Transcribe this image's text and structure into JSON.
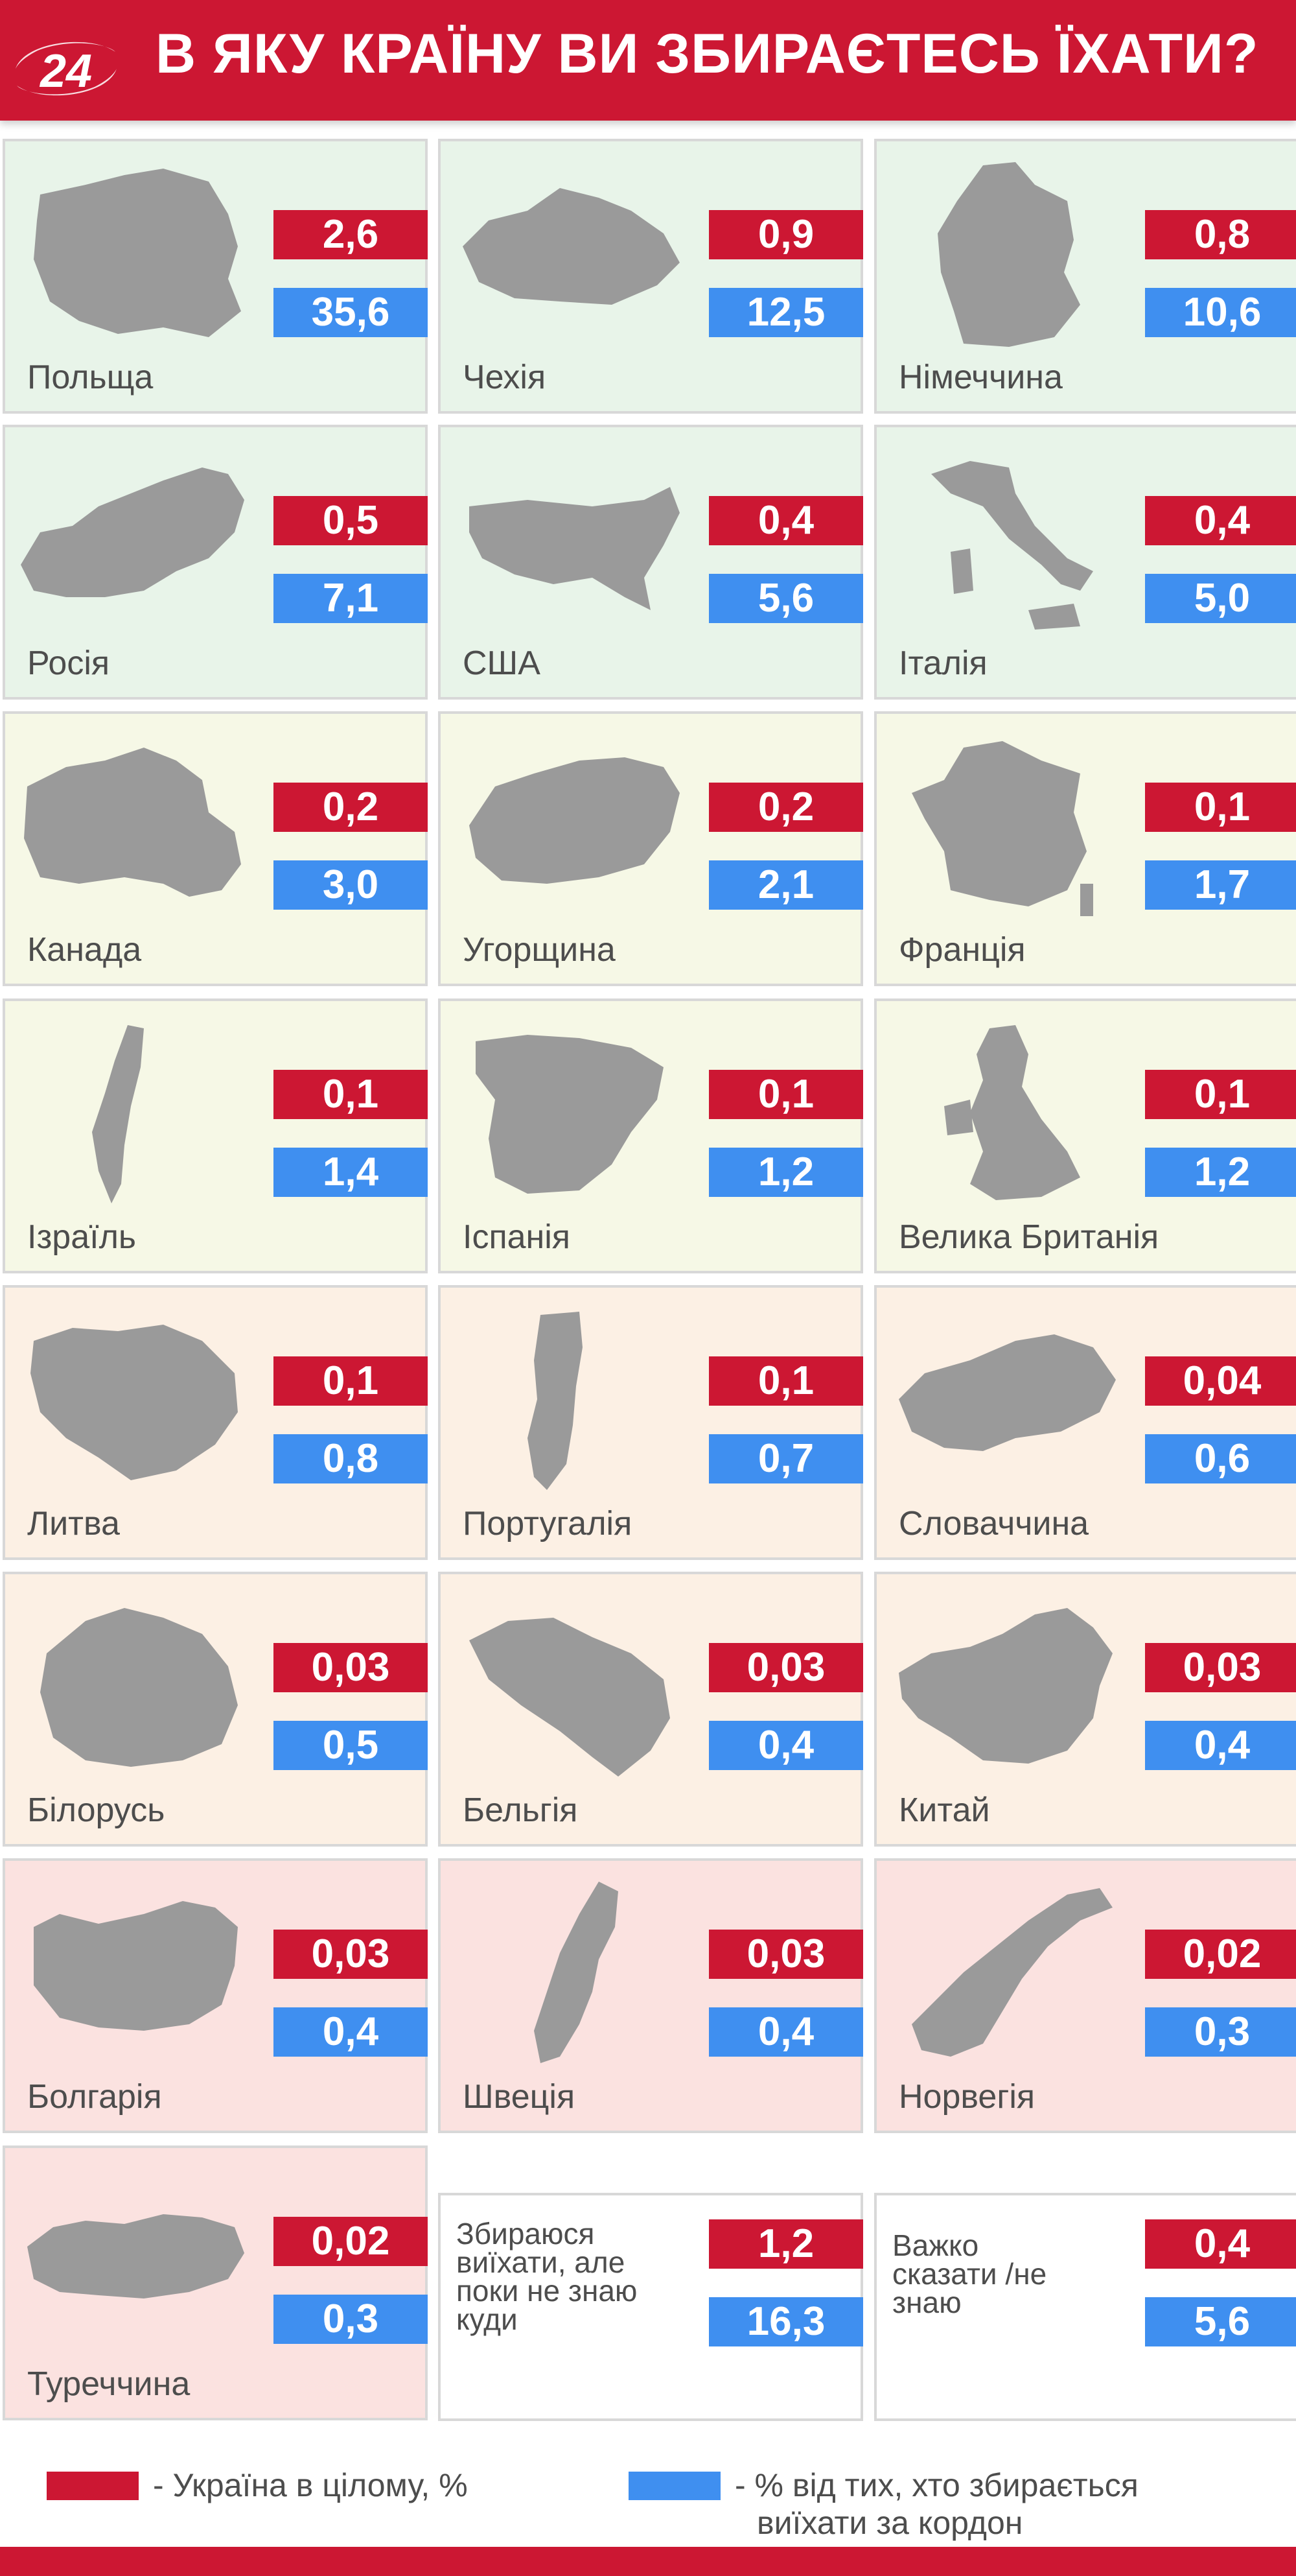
{
  "header": {
    "title": "В ЯКУ КРАЇНУ ВИ ЗБИРАЄТЕСЬ ЇХАТИ?",
    "logo_text": "24"
  },
  "chart_data": {
    "type": "table",
    "title": "В ЯКУ КРАЇНУ ВИ ЗБИРАЄТЕСЬ ЇХАТИ?",
    "series_info": [
      {
        "key": "ukraine",
        "color": "#cc1733",
        "legend": "- Україна в цілому, %"
      },
      {
        "key": "emigrants",
        "color": "#3f8ff0",
        "legend": "- % від тих, хто збирається виїхати за кордон"
      }
    ],
    "rows": [
      {
        "country": "Польща",
        "ukraine": "2,6",
        "emigrants": "35,6",
        "map": "poland-map-icon"
      },
      {
        "country": "Чехія",
        "ukraine": "0,9",
        "emigrants": "12,5",
        "map": "czechia-map-icon"
      },
      {
        "country": "Німеччина",
        "ukraine": "0,8",
        "emigrants": "10,6",
        "map": "germany-map-icon"
      },
      {
        "country": "Росія",
        "ukraine": "0,5",
        "emigrants": "7,1",
        "map": "russia-map-icon"
      },
      {
        "country": "США",
        "ukraine": "0,4",
        "emigrants": "5,6",
        "map": "usa-map-icon"
      },
      {
        "country": "Італія",
        "ukraine": "0,4",
        "emigrants": "5,0",
        "map": "italy-map-icon"
      },
      {
        "country": "Канада",
        "ukraine": "0,2",
        "emigrants": "3,0",
        "map": "canada-map-icon"
      },
      {
        "country": "Угорщина",
        "ukraine": "0,2",
        "emigrants": "2,1",
        "map": "hungary-map-icon"
      },
      {
        "country": "Франція",
        "ukraine": "0,1",
        "emigrants": "1,7",
        "map": "france-map-icon"
      },
      {
        "country": "Ізраїль",
        "ukraine": "0,1",
        "emigrants": "1,4",
        "map": "israel-map-icon"
      },
      {
        "country": "Іспанія",
        "ukraine": "0,1",
        "emigrants": "1,2",
        "map": "spain-map-icon"
      },
      {
        "country": "Велика Британія",
        "ukraine": "0,1",
        "emigrants": "1,2",
        "map": "uk-map-icon"
      },
      {
        "country": "Литва",
        "ukraine": "0,1",
        "emigrants": "0,8",
        "map": "lithuania-map-icon"
      },
      {
        "country": "Португалія",
        "ukraine": "0,1",
        "emigrants": "0,7",
        "map": "portugal-map-icon"
      },
      {
        "country": "Словаччина",
        "ukraine": "0,04",
        "emigrants": "0,6",
        "map": "slovakia-map-icon"
      },
      {
        "country": "Білорусь",
        "ukraine": "0,03",
        "emigrants": "0,5",
        "map": "belarus-map-icon"
      },
      {
        "country": "Бельгія",
        "ukraine": "0,03",
        "emigrants": "0,4",
        "map": "belgium-map-icon"
      },
      {
        "country": "Китай",
        "ukraine": "0,03",
        "emigrants": "0,4",
        "map": "china-map-icon"
      },
      {
        "country": "Болгарія",
        "ukraine": "0,03",
        "emigrants": "0,4",
        "map": "bulgaria-map-icon"
      },
      {
        "country": "Швеція",
        "ukraine": "0,03",
        "emigrants": "0,4",
        "map": "sweden-map-icon"
      },
      {
        "country": "Норвегія",
        "ukraine": "0,02",
        "emigrants": "0,3",
        "map": "norway-map-icon"
      },
      {
        "country": "Туреччина",
        "ukraine": "0,02",
        "emigrants": "0,3",
        "map": "turkey-map-icon"
      }
    ],
    "extra": [
      {
        "label_lines": [
          "Збираюся",
          "виїхати, але",
          "поки не знаю",
          "куди"
        ],
        "ukraine": "1,2",
        "emigrants": "16,3"
      },
      {
        "label_lines": [
          "Важко",
          "сказати /не",
          "знаю"
        ],
        "ukraine": "0,4",
        "emigrants": "5,6"
      }
    ]
  },
  "legend": {
    "red_text": "- Україна в цілому, %",
    "blue_text_lines": [
      "- % від тих, хто збирається",
      "виїхати за кордон"
    ],
    "red_color": "#cc1733",
    "blue_color": "#3f8ff0"
  }
}
